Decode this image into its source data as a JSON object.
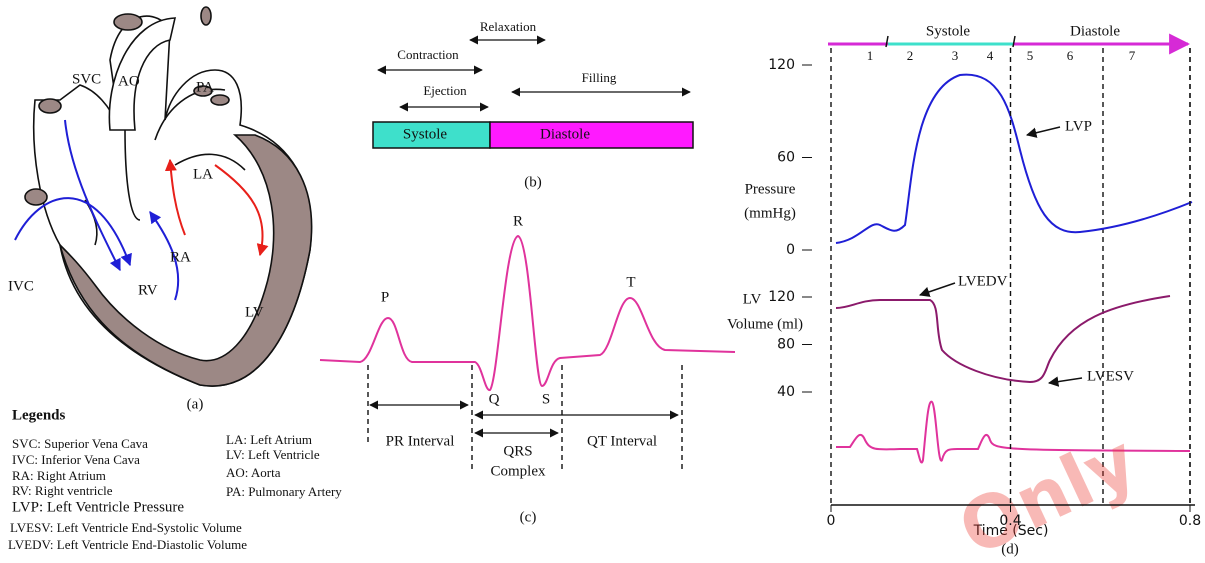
{
  "panel_a": {
    "svc": "SVC",
    "ao": "AO",
    "pa": "PA",
    "la": "LA",
    "ra": "RA",
    "rv": "RV",
    "lv": "LV",
    "ivc": "IVC",
    "caption": "(a)"
  },
  "legends": {
    "title": "Legends",
    "left": [
      "SVC: Superior Vena Cava",
      "IVC: Inferior Vena Cava",
      "RA: Right Atrium",
      "RV: Right ventricle"
    ],
    "right": [
      "LA: Left Atrium",
      "LV: Left Ventricle",
      "AO: Aorta",
      "PA: Pulmonary Artery"
    ],
    "lvp": "LVP: Left Ventricle Pressure",
    "bottom": [
      "LVESV: Left Ventricle End-Systolic Volume",
      "LVEDV: Left Ventricle End-Diastolic Volume"
    ]
  },
  "panel_b": {
    "relaxation": "Relaxation",
    "contraction": "Contraction",
    "ejection": "Ejection",
    "filling": "Filling",
    "systole": "Systole",
    "diastole": "Diastole",
    "caption": "(b)"
  },
  "panel_c": {
    "p": "P",
    "r": "R",
    "q": "Q",
    "s": "S",
    "t": "T",
    "pr_interval": "PR Interval",
    "qrs": [
      "QRS",
      "Complex"
    ],
    "qt_interval": "QT Interval",
    "caption": "(c)"
  },
  "panel_d": {
    "systole": "Systole",
    "diastole": "Diastole",
    "phases": [
      "1",
      "2",
      "3",
      "4",
      "5",
      "6",
      "7"
    ],
    "pressure_label": [
      "Pressure",
      "(mmHg)"
    ],
    "pressure_ticks": [
      120,
      60,
      0
    ],
    "volume_label": [
      "LV",
      "Volume (ml)"
    ],
    "volume_ticks": [
      120,
      80,
      40
    ],
    "time_ticks": [
      0,
      0.4,
      0.8
    ],
    "time_label": "Time (Sec)",
    "lvp": "LVP",
    "lvedv": "LVEDV",
    "lvesv": "LVESV",
    "caption": "(d)"
  },
  "watermark": "Only"
}
